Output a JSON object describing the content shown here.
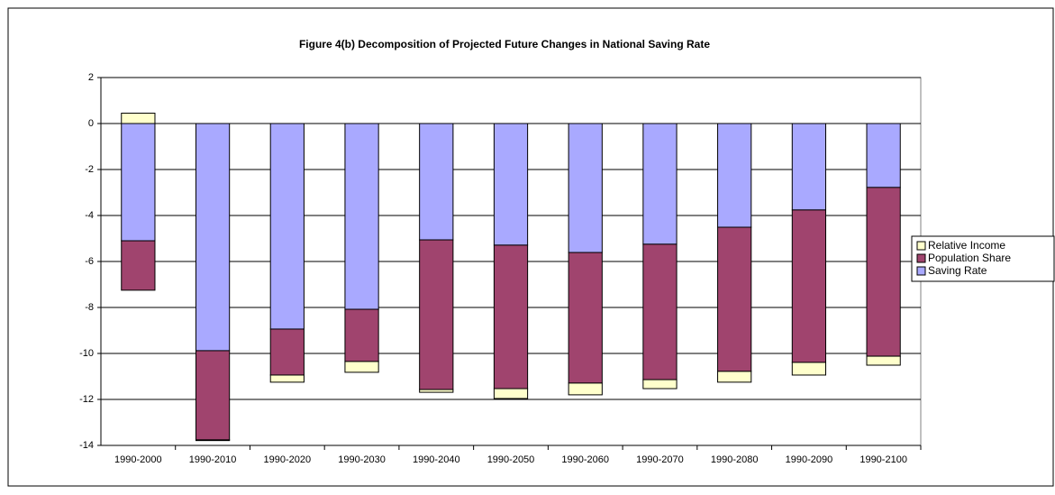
{
  "chart_data": {
    "type": "stacked_bar",
    "title": "Figure 4(b) Decomposition of Projected Future Changes in National Saving Rate",
    "categories": [
      "1990-2000",
      "1990-2010",
      "1990-2020",
      "1990-2030",
      "1990-2040",
      "1990-2050",
      "1990-2060",
      "1990-2070",
      "1990-2080",
      "1990-2090",
      "1990-2100"
    ],
    "series": [
      {
        "name": "Saving Rate",
        "color": "#a9a9ff",
        "values": [
          -5.1,
          -9.88,
          -8.94,
          -8.08,
          -5.06,
          -5.29,
          -5.61,
          -5.25,
          -4.51,
          -3.76,
          -2.78
        ]
      },
      {
        "name": "Population Share",
        "color": "#a0446e",
        "values": [
          -2.15,
          -3.88,
          -2.0,
          -2.27,
          -6.51,
          -6.24,
          -5.68,
          -5.89,
          -6.27,
          -6.63,
          -7.34
        ]
      },
      {
        "name": "Relative Income",
        "color": "#ffffcc",
        "values": [
          0.45,
          -0.03,
          -0.31,
          -0.47,
          -0.12,
          -0.43,
          -0.51,
          -0.39,
          -0.47,
          -0.55,
          -0.39
        ]
      }
    ],
    "ylim": [
      -14,
      2
    ],
    "yticks": [
      -14,
      -12,
      -10,
      -8,
      -6,
      -4,
      -2,
      0,
      2
    ],
    "grid": true,
    "legend": "right"
  }
}
